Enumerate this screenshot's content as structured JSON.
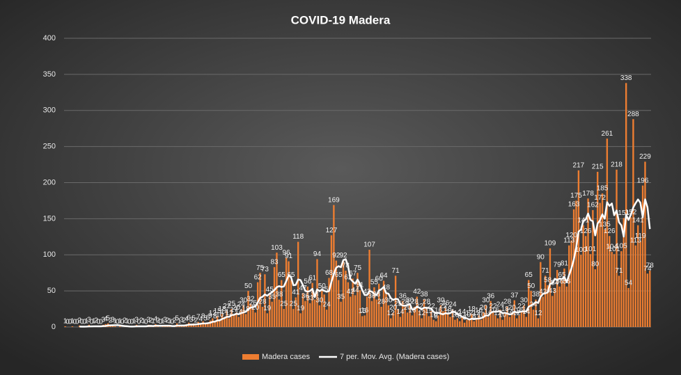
{
  "chart_data": {
    "type": "bar",
    "title": "COVID-19  Madera",
    "series": [
      {
        "name": "Madera cases",
        "color": "#ed7d31",
        "values": [
          1,
          0,
          0,
          1,
          0,
          0,
          2,
          0,
          0,
          1,
          3,
          0,
          1,
          2,
          0,
          0,
          3,
          4,
          5,
          2,
          3,
          1,
          0,
          1,
          0,
          2,
          1,
          0,
          0,
          1,
          3,
          0,
          2,
          1,
          0,
          3,
          2,
          1,
          4,
          2,
          0,
          1,
          3,
          2,
          1,
          0,
          2,
          5,
          1,
          3,
          2,
          4,
          6,
          3,
          5,
          2,
          7,
          4,
          8,
          5,
          6,
          9,
          12,
          8,
          15,
          10,
          18,
          14,
          22,
          12,
          25,
          17,
          20,
          14,
          24,
          30,
          18,
          50,
          32,
          26,
          20,
          62,
          75,
          28,
          73,
          19,
          45,
          35,
          83,
          103,
          38,
          65,
          25,
          96,
          91,
          65,
          25,
          41,
          118,
          19,
          47,
          36,
          56,
          33,
          61,
          38,
          94,
          30,
          50,
          45,
          24,
          68,
          127,
          169,
          92,
          65,
          35,
          92,
          78,
          62,
          42,
          67,
          44,
          75,
          51,
          15,
          16,
          42,
          107,
          36,
          55,
          38,
          60,
          28,
          64,
          48,
          30,
          12,
          20,
          71,
          25,
          14,
          36,
          28,
          20,
          30,
          16,
          28,
          42,
          22,
          12,
          38,
          28,
          15,
          22,
          10,
          8,
          16,
          30,
          22,
          26,
          18,
          14,
          24,
          10,
          12,
          8,
          14,
          6,
          10,
          12,
          18,
          8,
          12,
          16,
          10,
          20,
          30,
          14,
          36,
          22,
          16,
          12,
          24,
          10,
          18,
          28,
          14,
          20,
          37,
          12,
          16,
          22,
          30,
          14,
          65,
          50,
          24,
          38,
          12,
          90,
          42,
          71,
          58,
          109,
          43,
          54,
          79,
          56,
          65,
          81,
          56,
          113,
          120,
          163,
          175,
          217,
          100,
          141,
          126,
          178,
          101,
          162,
          80,
          215,
          172,
          185,
          135,
          261,
          126,
          104,
          101,
          218,
          71,
          105,
          151,
          338,
          54,
          152,
          288,
          113,
          141,
          119,
          196,
          229,
          74,
          78
        ]
      }
    ],
    "trendline": {
      "name": "7 per. Mov. Avg. (Madera cases)",
      "color": "#ffffff",
      "period": 7
    },
    "ylim": [
      0,
      400
    ],
    "yticks": [
      0,
      50,
      100,
      150,
      200,
      250,
      300,
      350,
      400
    ],
    "grid": true,
    "data_labels": true,
    "legend": "bottom"
  }
}
